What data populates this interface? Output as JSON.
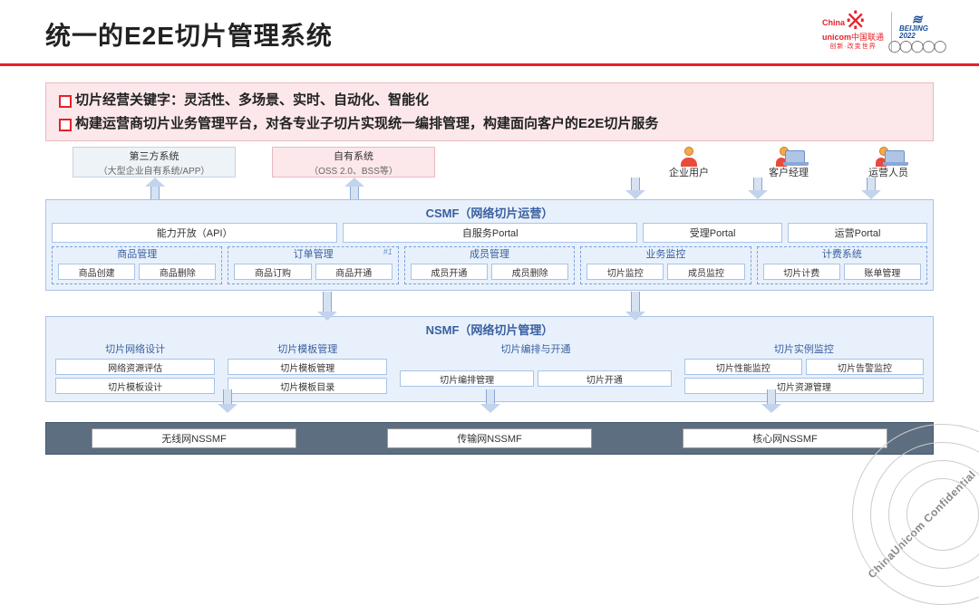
{
  "title": "统一的E2E切片管理系统",
  "logos": {
    "unicom_en": "China",
    "unicom_en2": "unicom",
    "unicom_cn": "中国联通",
    "unicom_slogan": "创新·改变世界",
    "beijing_year": "BEIJING 2022",
    "stripes": "≋"
  },
  "bullets": [
    "切片经营关键字：灵活性、多场景、实时、自动化、智能化",
    "构建运营商切片业务管理平台，对各专业子切片实现统一编排管理，构建面向客户的E2E切片服务"
  ],
  "external": {
    "third_party": {
      "title": "第三方系统",
      "sub": "（大型企业自有系统/APP）"
    },
    "own": {
      "title": "自有系统",
      "sub": "（OSS 2.0、BSS等）"
    }
  },
  "users": [
    "企业用户",
    "客户经理",
    "运营人员"
  ],
  "csmf": {
    "title": "CSMF（网络切片运营）",
    "portals": [
      "能力开放（API）",
      "自服务Portal",
      "受理Portal",
      "运营Portal"
    ],
    "portal_widths": [
      33,
      34,
      16,
      16
    ],
    "groups": [
      {
        "name": "商品管理",
        "items": [
          "商品创建",
          "商品删除"
        ]
      },
      {
        "name": "订单管理",
        "items": [
          "商品订购",
          "商品开通"
        ],
        "hash": "#1"
      },
      {
        "name": "成员管理",
        "items": [
          "成员开通",
          "成员删除"
        ]
      },
      {
        "name": "业务监控",
        "items": [
          "切片监控",
          "成员监控"
        ]
      },
      {
        "name": "计费系统",
        "items": [
          "切片计费",
          "账单管理"
        ]
      }
    ]
  },
  "nsmf": {
    "title": "NSMF（网络切片管理）",
    "groups": [
      {
        "name": "切片网络设计",
        "rows": [
          [
            "网络资源评估"
          ],
          [
            "切片模板设计"
          ]
        ],
        "flex": 1
      },
      {
        "name": "切片模板管理",
        "rows": [
          [
            "切片模板管理"
          ],
          [
            "切片模板目录"
          ]
        ],
        "flex": 1
      },
      {
        "name": "切片编排与开通",
        "rows": [
          [
            "切片编排管理",
            "切片开通"
          ]
        ],
        "flex": 1.7,
        "pad_top": true
      },
      {
        "name": "切片实例监控",
        "rows": [
          [
            "切片性能监控",
            "切片告警监控"
          ],
          [
            "切片资源管理"
          ]
        ],
        "flex": 1.5
      }
    ]
  },
  "nssmf": [
    "无线网NSSMF",
    "传输网NSSMF",
    "核心网NSSMF"
  ],
  "confidential": "ChinaUnicom Confidential",
  "colors": {
    "accent_red": "#e62129",
    "layer_bg": "#e8f1fb",
    "layer_border": "#a7c3e8",
    "dark_bg": "#5d6e80",
    "pink_bg": "#fce7ea",
    "arrow_fill": "#c2d3ec"
  }
}
